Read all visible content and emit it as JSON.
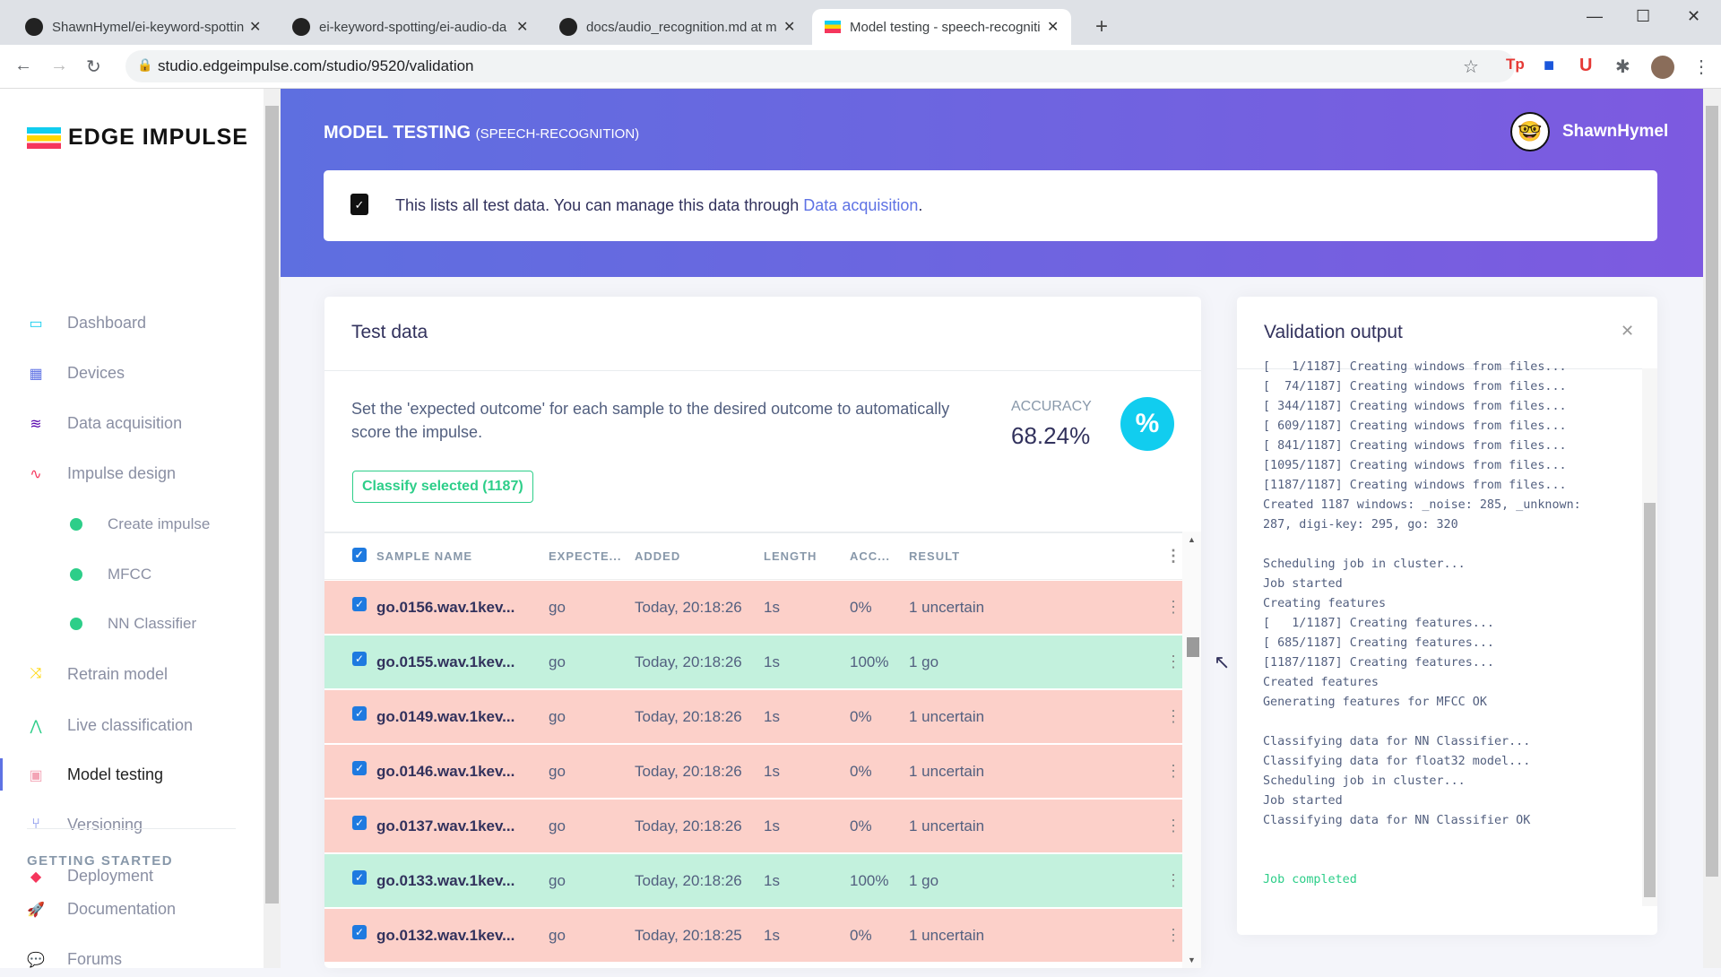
{
  "browser": {
    "tabs": [
      {
        "title": "ShawnHymel/ei-keyword-spottin"
      },
      {
        "title": "ei-keyword-spotting/ei-audio-da"
      },
      {
        "title": "docs/audio_recognition.md at m"
      },
      {
        "title": "Model testing - speech-recogniti"
      }
    ],
    "url": "studio.edgeimpulse.com/studio/9520/validation"
  },
  "sidebar": {
    "logo": "EDGE IMPULSE",
    "items": [
      {
        "label": "Dashboard",
        "icon": "monitor-icon",
        "color": "#11cdef"
      },
      {
        "label": "Devices",
        "icon": "chip-icon",
        "color": "#5e72e4"
      },
      {
        "label": "Data acquisition",
        "icon": "database-icon",
        "color": "#5603ad"
      },
      {
        "label": "Impulse design",
        "icon": "pulse-icon",
        "color": "#f5365c"
      },
      {
        "label": "Create impulse",
        "sub": true
      },
      {
        "label": "MFCC",
        "sub": true
      },
      {
        "label": "NN Classifier",
        "sub": true
      },
      {
        "label": "Retrain model",
        "icon": "shuffle-icon",
        "color": "#ffd600"
      },
      {
        "label": "Live classification",
        "icon": "live-icon",
        "color": "#2dce89"
      },
      {
        "label": "Model testing",
        "icon": "clipboard-icon",
        "color": "#f3a4b5",
        "active": true
      },
      {
        "label": "Versioning",
        "icon": "branch-icon",
        "color": "#5e72e4"
      },
      {
        "label": "Deployment",
        "icon": "box-icon",
        "color": "#f5365c"
      }
    ],
    "section": "GETTING STARTED",
    "extra": [
      {
        "label": "Documentation",
        "icon": "rocket-icon"
      },
      {
        "label": "Forums",
        "icon": "chat-icon"
      }
    ]
  },
  "header": {
    "title": "MODEL TESTING",
    "project": "(SPEECH-RECOGNITION)",
    "user": "ShawnHymel"
  },
  "info": {
    "text": "This lists all test data. You can manage this data through ",
    "link": "Data acquisition",
    "end": "."
  },
  "test": {
    "title": "Test data",
    "description": "Set the 'expected outcome' for each sample to the desired outcome to automatically score the impulse.",
    "accuracy_label": "ACCURACY",
    "accuracy": "68.24%",
    "classify": "Classify selected (1187)",
    "columns": [
      "SAMPLE NAME",
      "EXPECTE...",
      "ADDED",
      "LENGTH",
      "ACC...",
      "RESULT"
    ],
    "rows": [
      {
        "name": "go.0156.wav.1kev...",
        "expected": "go",
        "added": "Today, 20:18:26",
        "length": "1s",
        "acc": "0%",
        "result": "1 uncertain",
        "status": "bad"
      },
      {
        "name": "go.0155.wav.1kev...",
        "expected": "go",
        "added": "Today, 20:18:26",
        "length": "1s",
        "acc": "100%",
        "result": "1 go",
        "status": "good"
      },
      {
        "name": "go.0149.wav.1kev...",
        "expected": "go",
        "added": "Today, 20:18:26",
        "length": "1s",
        "acc": "0%",
        "result": "1 uncertain",
        "status": "bad"
      },
      {
        "name": "go.0146.wav.1kev...",
        "expected": "go",
        "added": "Today, 20:18:26",
        "length": "1s",
        "acc": "0%",
        "result": "1 uncertain",
        "status": "bad"
      },
      {
        "name": "go.0137.wav.1kev...",
        "expected": "go",
        "added": "Today, 20:18:26",
        "length": "1s",
        "acc": "0%",
        "result": "1 uncertain",
        "status": "bad"
      },
      {
        "name": "go.0133.wav.1kev...",
        "expected": "go",
        "added": "Today, 20:18:26",
        "length": "1s",
        "acc": "100%",
        "result": "1 go",
        "status": "good"
      },
      {
        "name": "go.0132.wav.1kev...",
        "expected": "go",
        "added": "Today, 20:18:25",
        "length": "1s",
        "acc": "0%",
        "result": "1 uncertain",
        "status": "bad"
      }
    ],
    "colors": {
      "good": "#c3f1dd",
      "bad": "#fcd0c9"
    }
  },
  "validation": {
    "title": "Validation output",
    "lines": [
      "[   1/1187] Creating windows from files...",
      "[  74/1187] Creating windows from files...",
      "[ 344/1187] Creating windows from files...",
      "[ 609/1187] Creating windows from files...",
      "[ 841/1187] Creating windows from files...",
      "[1095/1187] Creating windows from files...",
      "[1187/1187] Creating windows from files...",
      "Created 1187 windows: _noise: 285, _unknown:",
      "287, digi-key: 295, go: 320",
      "",
      "Scheduling job in cluster...",
      "Job started",
      "Creating features",
      "[   1/1187] Creating features...",
      "[ 685/1187] Creating features...",
      "[1187/1187] Creating features...",
      "Created features",
      "Generating features for MFCC OK",
      "",
      "Classifying data for NN Classifier...",
      "Classifying data for float32 model...",
      "Scheduling job in cluster...",
      "Job started",
      "Classifying data for NN Classifier OK",
      "",
      ""
    ],
    "completed": "Job completed"
  }
}
